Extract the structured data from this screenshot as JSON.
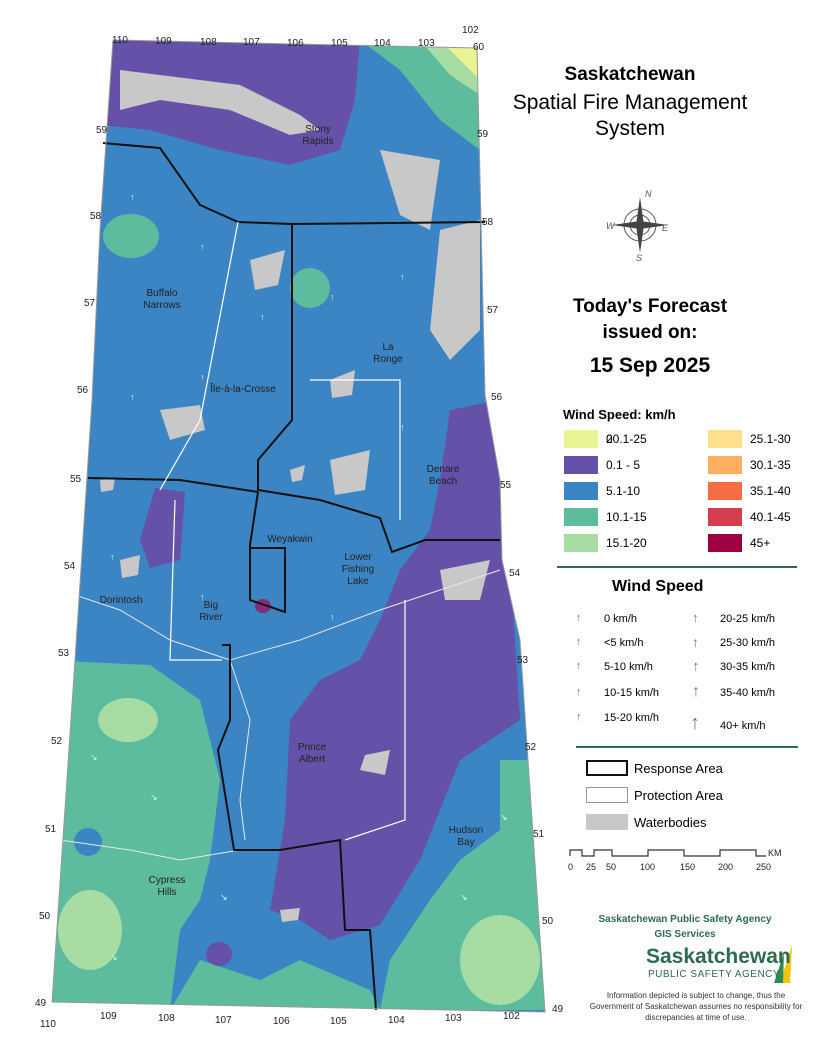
{
  "title": {
    "line1": "Saskatchewan",
    "line2": "Spatial Fire Management",
    "line3": "System"
  },
  "forecast": {
    "heading_line1": "Today's Forecast",
    "heading_line2": "issued on:",
    "date": "15 Sep 2025"
  },
  "compass": {
    "n": "N",
    "s": "S",
    "e": "E",
    "w": "W"
  },
  "legend_speed": {
    "heading": "Wind Speed: km/h",
    "classes": [
      {
        "label": "0",
        "color": "#ffffff"
      },
      {
        "label": "0.1 - 5",
        "color": "#6551a8"
      },
      {
        "label": "5.1-10",
        "color": "#3b85c4"
      },
      {
        "label": "10.1-15",
        "color": "#5dbb9e"
      },
      {
        "label": "15.1-20",
        "color": "#a7dca3"
      },
      {
        "label": "20.1-25",
        "color": "#e9f594"
      },
      {
        "label": "25.1-30",
        "color": "#fee08b"
      },
      {
        "label": "30.1-35",
        "color": "#fdae61"
      },
      {
        "label": "35.1-40",
        "color": "#f46d43"
      },
      {
        "label": "40.1-45",
        "color": "#d53e4f"
      },
      {
        "label": "45+",
        "color": "#9e0142"
      }
    ]
  },
  "legend_arrows": {
    "heading": "Wind Speed",
    "items": [
      "0 km/h",
      "<5 km/h",
      "5-10 km/h",
      "10-15 km/h",
      "15-20 km/h",
      "20-25 km/h",
      "25-30 km/h",
      "30-35 km/h",
      "35-40 km/h",
      "40+ km/h"
    ]
  },
  "legend_areas": {
    "response": "Response Area",
    "protection": "Protection Area",
    "water": "Waterbodies"
  },
  "scale": {
    "ticks": [
      "0",
      "25",
      "50",
      "100",
      "150",
      "200",
      "250"
    ],
    "unit": "KM"
  },
  "agency": {
    "line1": "Saskatchewan Public Safety Agency",
    "line2": "GIS  Services",
    "logo_word": "Saskatchewan",
    "logo_sub": "PUBLIC SAFETY AGENCY"
  },
  "disclaimer": "Information depicted is subject to change, thus the Government of Saskatchewan assumes no responsibility for discrepancies at time of use.",
  "places": {
    "stony_rapids": [
      "Stony",
      "Rapids"
    ],
    "buffalo_narrows": [
      "Buffalo",
      "Narrows"
    ],
    "la_ronge": [
      "La",
      "Ronge"
    ],
    "ile_a_la_crosse": "Île-à-la-Crosse",
    "denare_beach": [
      "Denare",
      "Beach"
    ],
    "weyakwin": "Weyakwin",
    "lower_fishing_lake": [
      "Lower",
      "Fishing",
      "Lake"
    ],
    "dorintosh": "Dorintosh",
    "big_river": [
      "Big",
      "River"
    ],
    "prince_albert": [
      "Prince",
      "Albert"
    ],
    "hudson_bay": [
      "Hudson",
      "Bay"
    ],
    "cypress_hills": [
      "Cypress",
      "Hills"
    ]
  },
  "graticule": {
    "lon_top": [
      "110",
      "109",
      "108",
      "107",
      "106",
      "105",
      "104",
      "103",
      "102"
    ],
    "lon_bottom": [
      "110",
      "109",
      "108",
      "107",
      "106",
      "105",
      "104",
      "103",
      "102"
    ],
    "lat_left": [
      "59",
      "58",
      "57",
      "56",
      "55",
      "54",
      "53",
      "52",
      "51",
      "50",
      "49"
    ],
    "lat_right": [
      "60",
      "59",
      "58",
      "57",
      "56",
      "55",
      "54",
      "53",
      "52",
      "51",
      "50",
      "49"
    ]
  }
}
